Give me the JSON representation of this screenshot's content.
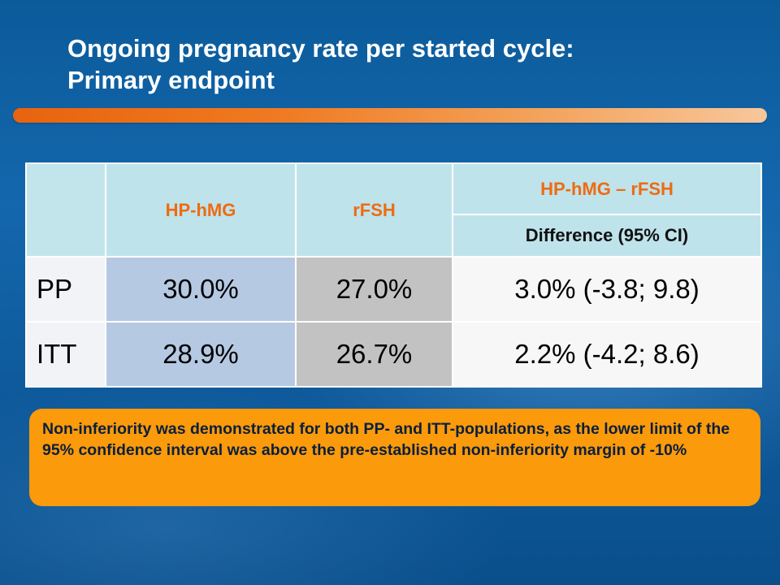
{
  "slide": {
    "title_line1": "Ongoing pregnancy rate per started cycle:",
    "title_line2": "Primary endpoint"
  },
  "table": {
    "columns": {
      "hmg": "HP-hMG",
      "rfsh": "rFSH",
      "diff_group": "HP-hMG – rFSH",
      "diff_sub": "Difference (95% CI)"
    },
    "rows": [
      {
        "label": "PP",
        "hmg": "30.0%",
        "rfsh": "27.0%",
        "diff": "3.0% (-3.8; 9.8)"
      },
      {
        "label": "ITT",
        "hmg": "28.9%",
        "rfsh": "26.7%",
        "diff": "2.2% (-4.2; 8.6)"
      }
    ]
  },
  "note": {
    "text": "Non-inferiority was demonstrated for both PP- and ITT-populations, as the lower limit of the 95% confidence interval was above the pre-established non-inferiority margin of -10%"
  },
  "colors": {
    "title": "#ffffff",
    "header_text": "#ee6b12",
    "header_bg": "#bfe3ea",
    "hmg_bg": "#b6c9e2",
    "rfsh_bg": "#c2c2c2",
    "note_bg": "#fb9a0a"
  }
}
